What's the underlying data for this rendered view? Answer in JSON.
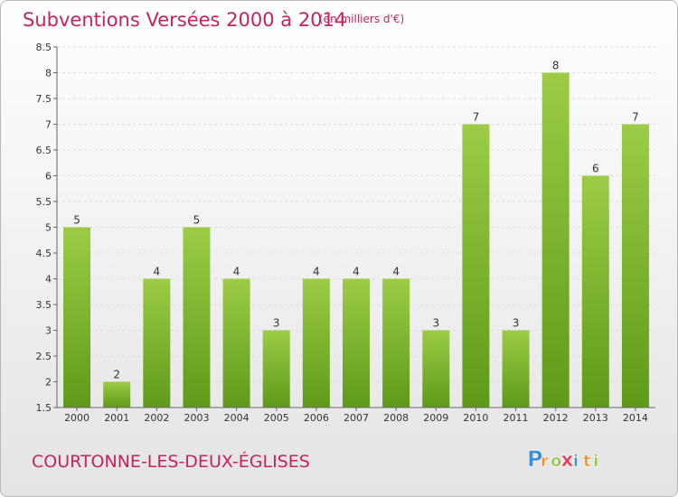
{
  "header": {
    "title": "Subventions Versées 2000 à 2014",
    "subtitle": "(en milliers d'€)"
  },
  "footer": {
    "commune": "COURTONNE-LES-DEUX-ÉGLISES",
    "logo_letters": [
      "P",
      "r",
      "o",
      "x",
      "i",
      "t",
      "i"
    ],
    "logo_colors": [
      "#3b8fd6",
      "#f28c1f",
      "#8cc43c",
      "#e83a5f",
      "#3b8fd6",
      "#f28c1f",
      "#8cc43c"
    ]
  },
  "chart_data": {
    "type": "bar",
    "title": "Subventions Versées 2000 à 2014",
    "subtitle": "(en milliers d'€)",
    "categories": [
      "2000",
      "2001",
      "2002",
      "2003",
      "2004",
      "2005",
      "2006",
      "2007",
      "2008",
      "2009",
      "2010",
      "2011",
      "2012",
      "2013",
      "2014"
    ],
    "values": [
      5,
      2,
      4,
      5,
      4,
      3,
      4,
      4,
      4,
      3,
      7,
      3,
      8,
      6,
      7
    ],
    "ylim": [
      1.5,
      8.5
    ],
    "yticks": [
      "1.5",
      "2",
      "2.5",
      "3",
      "3.5",
      "4",
      "4.5",
      "5",
      "5.5",
      "6",
      "6.5",
      "7",
      "7.5",
      "8",
      "8.5"
    ],
    "grid": true,
    "bar_color_top": "#9ccc45",
    "bar_color_bottom": "#5e9a18"
  }
}
